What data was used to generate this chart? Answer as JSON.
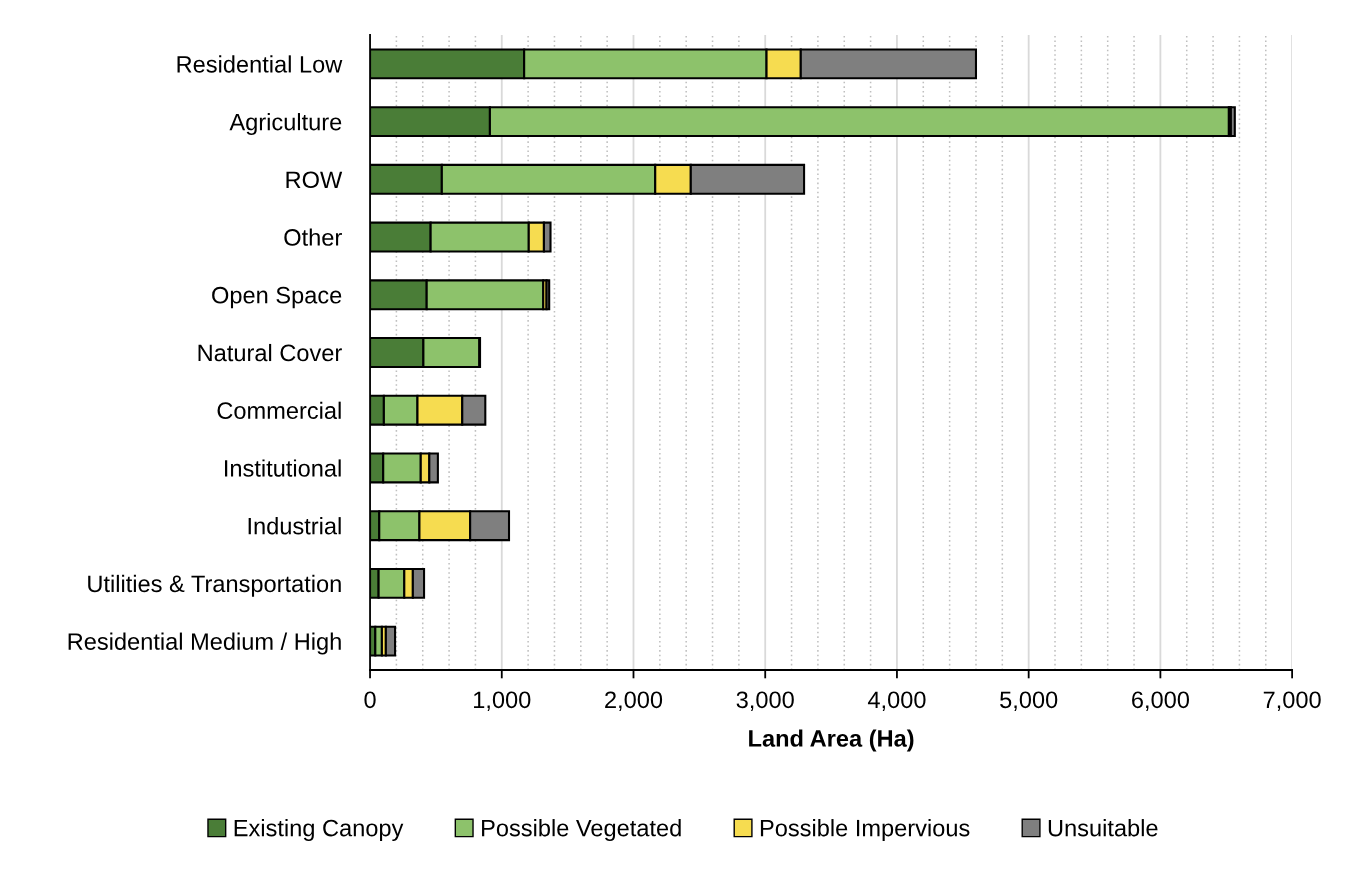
{
  "chart_data": {
    "type": "bar",
    "orientation": "horizontal",
    "stacked": true,
    "categories": [
      "Residential Low",
      "Agriculture",
      "ROW",
      "Other",
      "Open Space",
      "Natural Cover",
      "Commercial",
      "Institutional",
      "Industrial",
      "Utilities & Transportation",
      "Residential Medium / High"
    ],
    "series": [
      {
        "name": "Existing Canopy",
        "color": "#4a7d37",
        "values": [
          1170,
          910,
          545,
          460,
          430,
          405,
          105,
          100,
          70,
          65,
          40
        ]
      },
      {
        "name": "Possible Vegetated",
        "color": "#8dc26b",
        "values": [
          1840,
          5610,
          1620,
          745,
          885,
          425,
          255,
          285,
          305,
          195,
          50
        ]
      },
      {
        "name": "Possible Impervious",
        "color": "#f6dc50",
        "values": [
          260,
          15,
          270,
          115,
          25,
          null,
          340,
          65,
          385,
          65,
          30
        ]
      },
      {
        "name": "Unsuitable",
        "color": "#7f7f7f",
        "values": [
          1330,
          30,
          860,
          50,
          20,
          5,
          175,
          65,
          295,
          85,
          70
        ]
      }
    ],
    "xlabel": "Land Area (Ha)",
    "xlim": [
      0,
      7000
    ],
    "xticks": [
      0,
      {
        "value": 200,
        "label": null
      },
      {
        "value": 400,
        "label": null
      },
      {
        "value": 600,
        "label": null
      },
      {
        "value": 800,
        "label": null
      },
      {
        "value": 1000,
        "label": "1,000"
      },
      {
        "value": 1200,
        "label": null
      },
      {
        "value": 1400,
        "label": null
      },
      {
        "value": 1600,
        "label": null
      },
      {
        "value": 1800,
        "label": null
      },
      {
        "value": 2000,
        "label": "2,000"
      },
      {
        "value": 2200,
        "label": null
      },
      {
        "value": 2400,
        "label": null
      },
      {
        "value": 2600,
        "label": null
      },
      {
        "value": 2800,
        "label": null
      },
      {
        "value": 3000,
        "label": "3,000"
      },
      {
        "value": 3200,
        "label": null
      },
      {
        "value": 3400,
        "label": null
      },
      {
        "value": 3600,
        "label": null
      },
      {
        "value": 3800,
        "label": null
      },
      {
        "value": 4000,
        "label": "4,000"
      },
      {
        "value": 4200,
        "label": null
      },
      {
        "value": 4400,
        "label": null
      },
      {
        "value": 4600,
        "label": null
      },
      {
        "value": 4800,
        "label": null
      },
      {
        "value": 5000,
        "label": "5,000"
      },
      {
        "value": 5200,
        "label": null
      },
      {
        "value": 5400,
        "label": null
      },
      {
        "value": 5600,
        "label": null
      },
      {
        "value": 5800,
        "label": null
      },
      {
        "value": 6000,
        "label": "6,000"
      },
      {
        "value": 6200,
        "label": null
      },
      {
        "value": 6400,
        "label": null
      },
      {
        "value": 6600,
        "label": null
      },
      {
        "value": 6800,
        "label": null
      },
      {
        "value": 7000,
        "label": "7,000"
      }
    ],
    "grid": "x",
    "legend": "bottom"
  }
}
